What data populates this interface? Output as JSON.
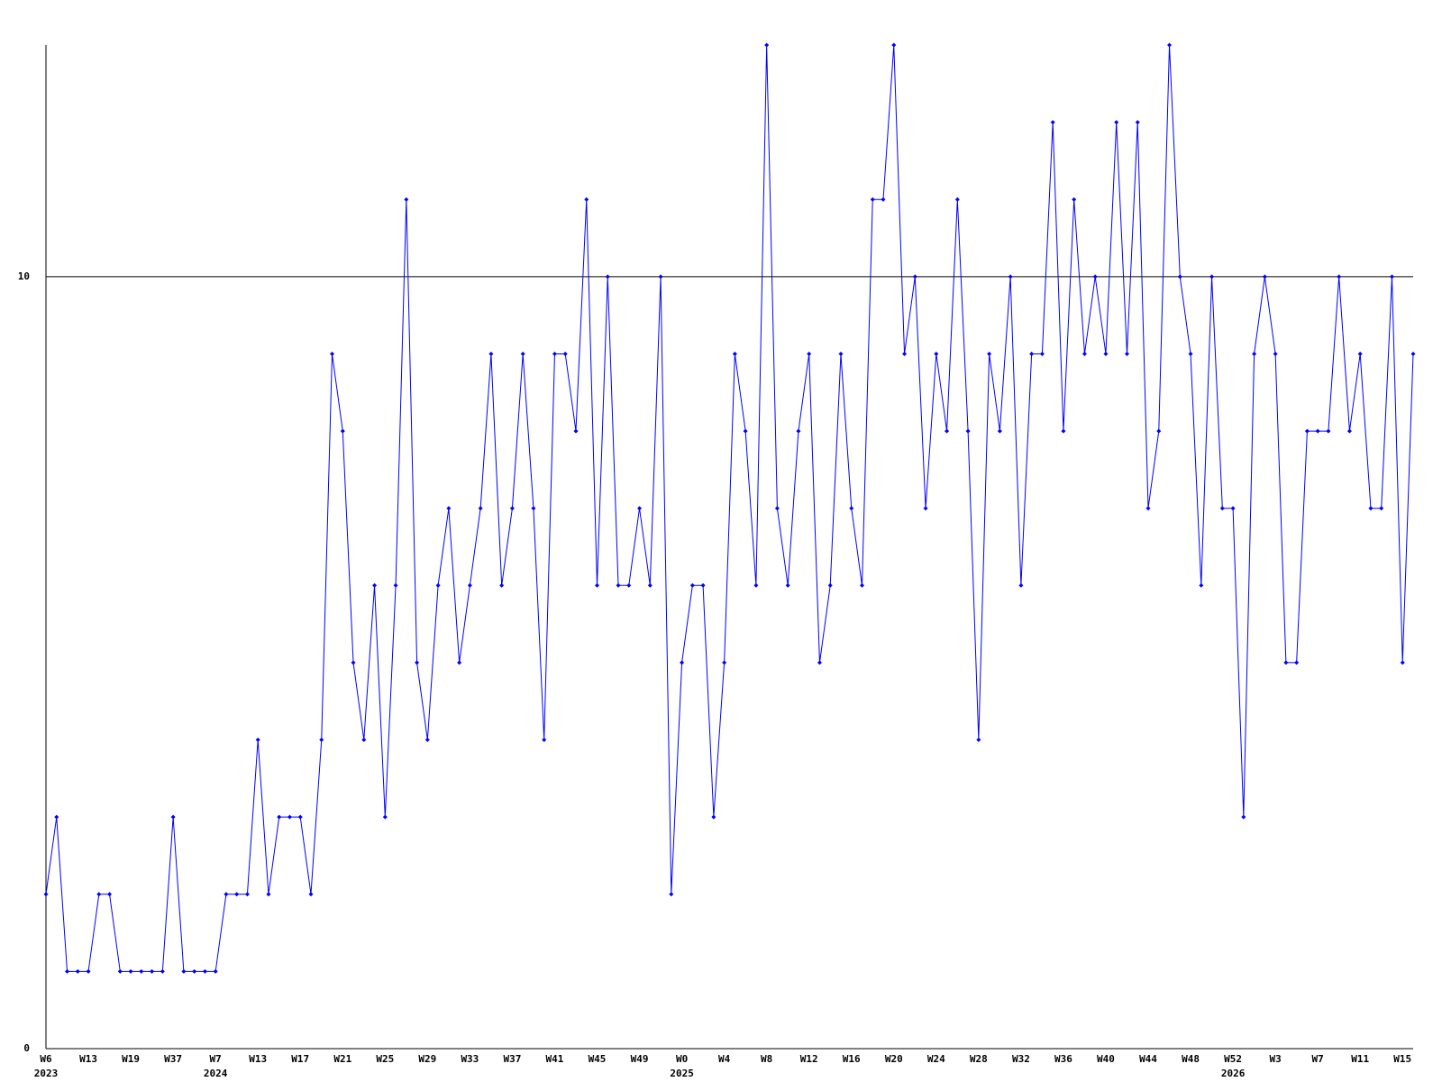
{
  "chart_data": {
    "type": "line",
    "categories": [
      "W6",
      null,
      null,
      null,
      "W13",
      null,
      null,
      null,
      "W19",
      null,
      null,
      null,
      "W37",
      null,
      null,
      null,
      "W7",
      null,
      null,
      null,
      "W13",
      null,
      null,
      null,
      "W17",
      null,
      null,
      null,
      "W21",
      null,
      null,
      null,
      "W25",
      null,
      null,
      null,
      "W29",
      null,
      null,
      null,
      "W33",
      null,
      null,
      null,
      "W37",
      null,
      null,
      null,
      "W41",
      null,
      null,
      null,
      "W45",
      null,
      null,
      null,
      "W49",
      null,
      null,
      null,
      "W0",
      null,
      null,
      null,
      "W4",
      null,
      null,
      null,
      "W8",
      null,
      null,
      null,
      "W12",
      null,
      null,
      null,
      "W16",
      null,
      null,
      null,
      "W20",
      null,
      null,
      null,
      "W24",
      null,
      null,
      null,
      "W28",
      null,
      null,
      null,
      "W32",
      null,
      null,
      null,
      "W36",
      null,
      null,
      null,
      "W40",
      null,
      null,
      null,
      "W44",
      null,
      null,
      null,
      "W48",
      null,
      null,
      null,
      "W52",
      null,
      null,
      null,
      "W3",
      null,
      null,
      null,
      "W7",
      null,
      null,
      null,
      "W11",
      null,
      null,
      null,
      "W15",
      null
    ],
    "years": [
      "2023",
      null,
      null,
      null,
      null,
      null,
      null,
      null,
      null,
      null,
      null,
      null,
      null,
      null,
      null,
      null,
      "2024",
      null,
      null,
      null,
      null,
      null,
      null,
      null,
      null,
      null,
      null,
      null,
      null,
      null,
      null,
      null,
      null,
      null,
      null,
      null,
      null,
      null,
      null,
      null,
      null,
      null,
      null,
      null,
      null,
      null,
      null,
      null,
      null,
      null,
      null,
      null,
      null,
      null,
      null,
      null,
      null,
      null,
      null,
      null,
      "2025",
      null,
      null,
      null,
      null,
      null,
      null,
      null,
      null,
      null,
      null,
      null,
      null,
      null,
      null,
      null,
      null,
      null,
      null,
      null,
      null,
      null,
      null,
      null,
      null,
      null,
      null,
      null,
      null,
      null,
      null,
      null,
      null,
      null,
      null,
      null,
      null,
      null,
      null,
      null,
      null,
      null,
      null,
      null,
      null,
      null,
      null,
      null,
      null,
      null,
      null,
      null,
      "2026",
      null,
      null,
      null,
      null,
      null,
      null,
      null,
      null,
      null,
      null,
      null,
      null,
      null,
      null,
      null,
      null,
      null
    ],
    "series": [
      {
        "color": "#0000ff",
        "values": [
          2,
          3,
          1,
          1,
          1,
          2,
          2,
          1,
          1,
          1,
          1,
          1,
          3,
          1,
          1,
          1,
          1,
          2,
          2,
          2,
          4,
          2,
          3,
          3,
          3,
          2,
          4,
          9,
          8,
          5,
          4,
          6,
          3,
          6,
          11,
          5,
          4,
          6,
          7,
          5,
          6,
          7,
          9,
          6,
          7,
          9,
          7,
          4,
          9,
          9,
          8,
          11,
          6,
          10,
          6,
          6,
          7,
          6,
          10,
          2,
          5,
          6,
          6,
          3,
          5,
          9,
          8,
          6,
          13,
          7,
          6,
          8,
          9,
          5,
          6,
          9,
          7,
          6,
          11,
          11,
          13,
          9,
          10,
          7,
          9,
          8,
          11,
          8,
          4,
          9,
          8,
          10,
          6,
          9,
          9,
          12,
          8,
          11,
          9,
          10,
          9,
          12,
          9,
          12,
          7,
          8,
          13,
          10,
          9,
          6,
          10,
          7,
          7,
          3,
          9,
          10,
          9,
          5,
          5,
          8,
          8,
          8,
          10,
          8,
          9,
          7,
          7,
          10,
          5,
          9
        ]
      }
    ],
    "ylim": [
      0,
      13
    ],
    "yticks": [
      0,
      10
    ],
    "grid": true
  }
}
